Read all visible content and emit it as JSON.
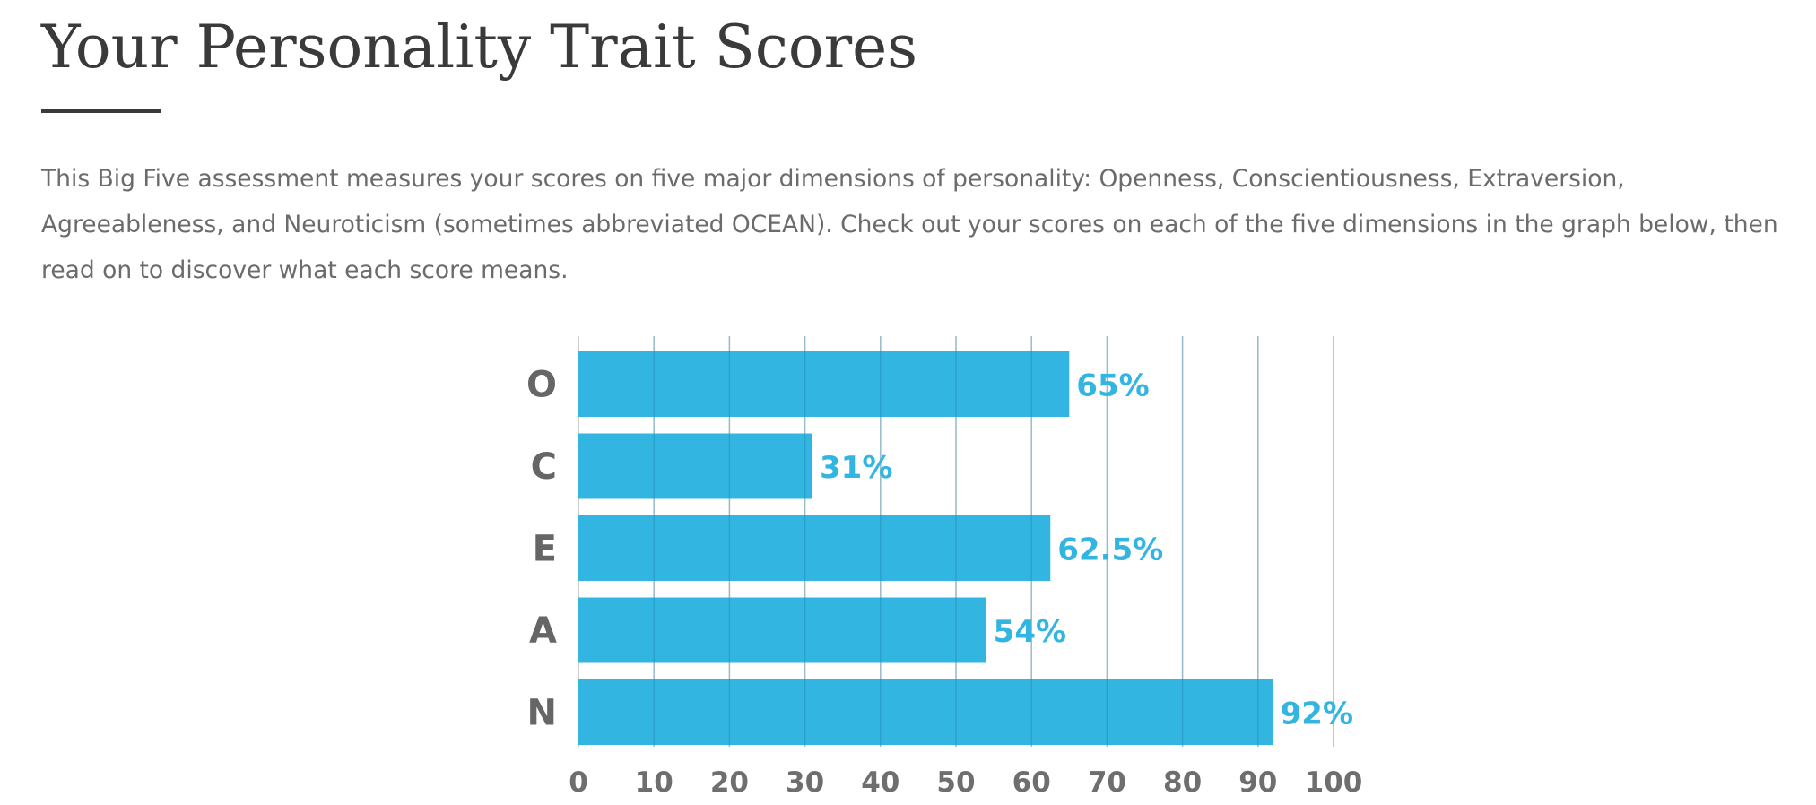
{
  "page": {
    "title": "Your Personality Trait Scores",
    "intro": "This Big Five assessment measures your scores on five major dimensions of personality: Openness, Conscientiousness, Extraversion, Agreeableness, and Neuroticism (sometimes abbreviated OCEAN). Check out your scores on each of the five dimensions in the graph below, then read on to discover what each score means."
  },
  "colors": {
    "bar": "#33b5e2",
    "value_label": "#33b5e2",
    "grid": "#dcdcdc",
    "text": "#6b6b6b"
  },
  "chart_data": {
    "type": "bar",
    "orientation": "horizontal",
    "categories": [
      "O",
      "C",
      "E",
      "A",
      "N"
    ],
    "values": [
      65,
      31,
      62.5,
      54,
      92
    ],
    "value_labels": [
      "65%",
      "31%",
      "62.5%",
      "54%",
      "92%"
    ],
    "xlim": [
      0,
      100
    ],
    "xticks": [
      0,
      10,
      20,
      30,
      40,
      50,
      60,
      70,
      80,
      90,
      100
    ],
    "grid": true,
    "title": "",
    "xlabel": "",
    "ylabel": ""
  }
}
